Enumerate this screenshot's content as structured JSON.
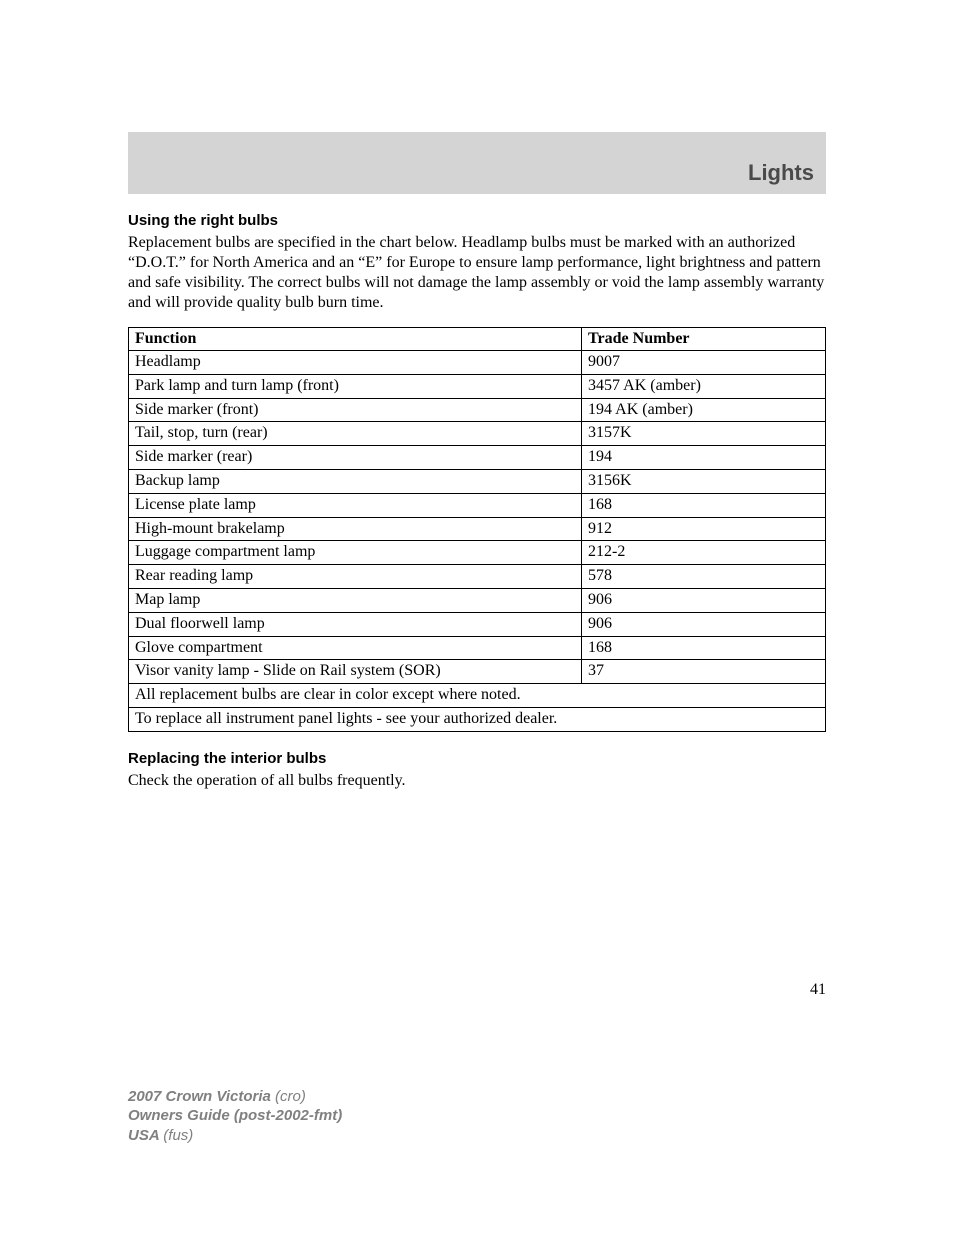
{
  "header": {
    "title": "Lights"
  },
  "section1": {
    "heading": "Using the right bulbs",
    "body": "Replacement bulbs are specified in the chart below. Headlamp bulbs must be marked with an authorized “D.O.T.” for North America and an “E” for Europe to ensure lamp performance, light brightness and pattern and safe visibility. The correct bulbs will not damage the lamp assembly or void the lamp assembly warranty and will provide quality bulb burn time."
  },
  "table": {
    "columns": [
      "Function",
      "Trade Number"
    ],
    "rows": [
      [
        "Headlamp",
        "9007"
      ],
      [
        "Park lamp and turn lamp (front)",
        "3457 AK (amber)"
      ],
      [
        "Side marker (front)",
        "194 AK (amber)"
      ],
      [
        "Tail, stop, turn (rear)",
        "3157K"
      ],
      [
        "Side marker (rear)",
        "194"
      ],
      [
        "Backup lamp",
        "3156K"
      ],
      [
        "License plate lamp",
        "168"
      ],
      [
        "High-mount brakelamp",
        "912"
      ],
      [
        "Luggage compartment lamp",
        "212-2"
      ],
      [
        "Rear reading lamp",
        "578"
      ],
      [
        "Map lamp",
        "906"
      ],
      [
        "Dual floorwell lamp",
        "906"
      ],
      [
        "Glove compartment",
        "168"
      ],
      [
        "Visor vanity lamp - Slide on Rail system (SOR)",
        "37"
      ]
    ],
    "notes": [
      "All replacement bulbs are clear in color except where noted.",
      "To replace all instrument panel lights - see your authorized dealer."
    ]
  },
  "section2": {
    "heading": "Replacing the interior bulbs",
    "body": "Check the operation of all bulbs frequently."
  },
  "page_number": "41",
  "footer": {
    "line1_bold": "2007 Crown Victoria ",
    "line1_rest": "(cro)",
    "line2": "Owners Guide (post-2002-fmt)",
    "line3_bold": "USA ",
    "line3_rest": "(fus)"
  }
}
